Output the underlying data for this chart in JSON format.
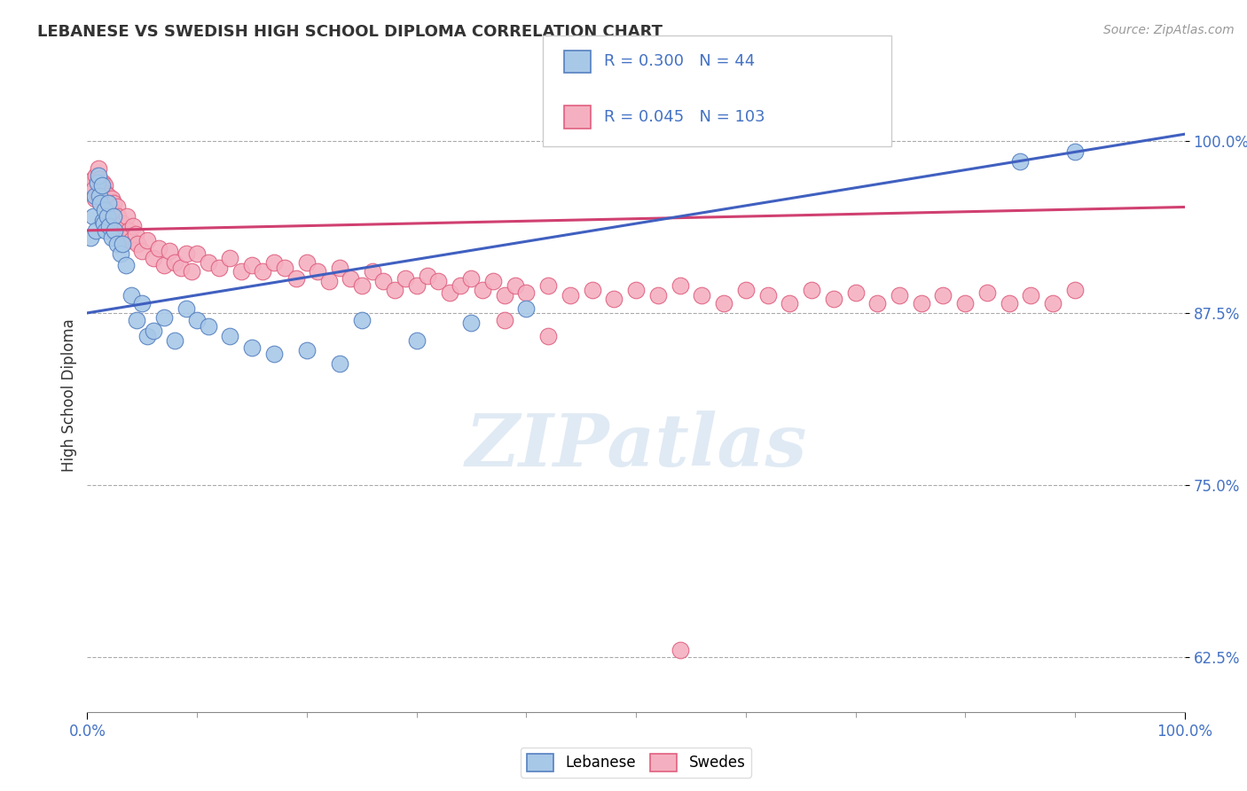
{
  "title": "LEBANESE VS SWEDISH HIGH SCHOOL DIPLOMA CORRELATION CHART",
  "source": "Source: ZipAtlas.com",
  "ylabel": "High School Diploma",
  "xlim": [
    0.0,
    1.0
  ],
  "ylim": [
    0.585,
    1.045
  ],
  "ytick_positions": [
    0.625,
    0.75,
    0.875,
    1.0
  ],
  "ytick_labels": [
    "62.5%",
    "75.0%",
    "87.5%",
    "100.0%"
  ],
  "legend_R_blue": "0.300",
  "legend_N_blue": "44",
  "legend_R_pink": "0.045",
  "legend_N_pink": "103",
  "legend_label_blue": "Lebanese",
  "legend_label_pink": "Swedes",
  "blue_color": "#A8C8E8",
  "pink_color": "#F4B0C0",
  "blue_edge": "#5580C0",
  "pink_edge": "#E06080",
  "trendline_blue": "#4060C0",
  "trendline_pink": "#D04070",
  "background_color": "#FFFFFF",
  "blue_dots_x": [
    0.003,
    0.005,
    0.007,
    0.008,
    0.009,
    0.01,
    0.011,
    0.012,
    0.013,
    0.014,
    0.015,
    0.016,
    0.017,
    0.018,
    0.019,
    0.02,
    0.022,
    0.024,
    0.025,
    0.027,
    0.03,
    0.032,
    0.035,
    0.04,
    0.045,
    0.05,
    0.055,
    0.06,
    0.07,
    0.08,
    0.09,
    0.1,
    0.11,
    0.13,
    0.15,
    0.17,
    0.2,
    0.23,
    0.25,
    0.3,
    0.35,
    0.4,
    0.85,
    0.9
  ],
  "blue_dots_y": [
    0.93,
    0.945,
    0.96,
    0.935,
    0.97,
    0.975,
    0.96,
    0.955,
    0.968,
    0.942,
    0.94,
    0.95,
    0.935,
    0.945,
    0.955,
    0.938,
    0.93,
    0.945,
    0.935,
    0.925,
    0.918,
    0.925,
    0.91,
    0.888,
    0.87,
    0.882,
    0.858,
    0.862,
    0.872,
    0.855,
    0.878,
    0.87,
    0.865,
    0.858,
    0.85,
    0.845,
    0.848,
    0.838,
    0.87,
    0.855,
    0.868,
    0.878,
    0.985,
    0.992
  ],
  "pink_dots_x": [
    0.003,
    0.005,
    0.006,
    0.007,
    0.008,
    0.009,
    0.01,
    0.011,
    0.012,
    0.013,
    0.014,
    0.015,
    0.016,
    0.017,
    0.018,
    0.019,
    0.02,
    0.021,
    0.022,
    0.023,
    0.024,
    0.025,
    0.026,
    0.027,
    0.028,
    0.03,
    0.032,
    0.034,
    0.036,
    0.038,
    0.04,
    0.042,
    0.044,
    0.046,
    0.05,
    0.055,
    0.06,
    0.065,
    0.07,
    0.075,
    0.08,
    0.085,
    0.09,
    0.095,
    0.1,
    0.11,
    0.12,
    0.13,
    0.14,
    0.15,
    0.16,
    0.17,
    0.18,
    0.19,
    0.2,
    0.21,
    0.22,
    0.23,
    0.24,
    0.25,
    0.26,
    0.27,
    0.28,
    0.29,
    0.3,
    0.31,
    0.32,
    0.33,
    0.34,
    0.35,
    0.36,
    0.37,
    0.38,
    0.39,
    0.4,
    0.42,
    0.44,
    0.46,
    0.48,
    0.5,
    0.52,
    0.54,
    0.56,
    0.58,
    0.6,
    0.62,
    0.64,
    0.66,
    0.68,
    0.7,
    0.72,
    0.74,
    0.76,
    0.78,
    0.8,
    0.82,
    0.84,
    0.86,
    0.88,
    0.9,
    0.38,
    0.42,
    0.54
  ],
  "pink_dots_y": [
    0.968,
    0.972,
    0.965,
    0.958,
    0.975,
    0.96,
    0.98,
    0.972,
    0.965,
    0.958,
    0.97,
    0.955,
    0.968,
    0.962,
    0.95,
    0.96,
    0.952,
    0.945,
    0.958,
    0.94,
    0.955,
    0.948,
    0.942,
    0.952,
    0.945,
    0.938,
    0.94,
    0.93,
    0.945,
    0.935,
    0.928,
    0.938,
    0.932,
    0.925,
    0.92,
    0.928,
    0.915,
    0.922,
    0.91,
    0.92,
    0.912,
    0.908,
    0.918,
    0.905,
    0.918,
    0.912,
    0.908,
    0.915,
    0.905,
    0.91,
    0.905,
    0.912,
    0.908,
    0.9,
    0.912,
    0.905,
    0.898,
    0.908,
    0.9,
    0.895,
    0.905,
    0.898,
    0.892,
    0.9,
    0.895,
    0.902,
    0.898,
    0.89,
    0.895,
    0.9,
    0.892,
    0.898,
    0.888,
    0.895,
    0.89,
    0.895,
    0.888,
    0.892,
    0.885,
    0.892,
    0.888,
    0.895,
    0.888,
    0.882,
    0.892,
    0.888,
    0.882,
    0.892,
    0.885,
    0.89,
    0.882,
    0.888,
    0.882,
    0.888,
    0.882,
    0.89,
    0.882,
    0.888,
    0.882,
    0.892,
    0.87,
    0.858,
    0.63
  ]
}
